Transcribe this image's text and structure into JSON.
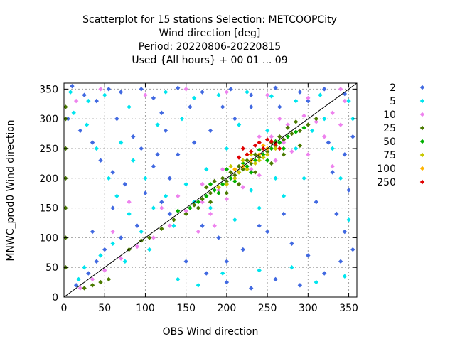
{
  "chart_data": {
    "type": "scatter",
    "title": [
      "Scatterplot for   15 stations Selection: METCOOPCity",
      "Wind direction [deg]",
      "Period: 20220806-20220815",
      "Used {All hours} + 00 01 ... 09"
    ],
    "xlabel": "OBS Wind direction",
    "ylabel": "MNWC_prod0 Wind direction",
    "xlim": [
      0,
      360
    ],
    "ylim": [
      0,
      360
    ],
    "x_ticks": [
      0,
      50,
      100,
      150,
      200,
      250,
      300,
      350
    ],
    "y_ticks": [
      0,
      50,
      100,
      150,
      200,
      250,
      300,
      350
    ],
    "grid": true,
    "diagonal_line": true,
    "legend_position": "right",
    "series": [
      {
        "name": "2",
        "color": "#4169e1",
        "marker": "diamond",
        "points": [
          [
            10,
            355
          ],
          [
            25,
            340
          ],
          [
            40,
            330
          ],
          [
            55,
            350
          ],
          [
            70,
            345
          ],
          [
            95,
            350
          ],
          [
            110,
            335
          ],
          [
            140,
            352
          ],
          [
            170,
            345
          ],
          [
            205,
            350
          ],
          [
            230,
            340
          ],
          [
            260,
            352
          ],
          [
            290,
            345
          ],
          [
            320,
            350
          ],
          [
            345,
            342
          ],
          [
            5,
            300
          ],
          [
            20,
            280
          ],
          [
            35,
            260
          ],
          [
            45,
            230
          ],
          [
            60,
            210
          ],
          [
            75,
            190
          ],
          [
            100,
            175
          ],
          [
            120,
            160
          ],
          [
            130,
            140
          ],
          [
            90,
            120
          ],
          [
            70,
            100
          ],
          [
            50,
            80
          ],
          [
            40,
            60
          ],
          [
            30,
            40
          ],
          [
            15,
            20
          ],
          [
            150,
            60
          ],
          [
            175,
            40
          ],
          [
            200,
            25
          ],
          [
            230,
            15
          ],
          [
            260,
            30
          ],
          [
            290,
            20
          ],
          [
            320,
            40
          ],
          [
            340,
            60
          ],
          [
            355,
            80
          ],
          [
            345,
            110
          ],
          [
            335,
            140
          ],
          [
            350,
            180
          ],
          [
            330,
            210
          ],
          [
            345,
            240
          ],
          [
            355,
            270
          ],
          [
            210,
            300
          ],
          [
            180,
            280
          ],
          [
            160,
            260
          ],
          [
            140,
            240
          ],
          [
            110,
            220
          ],
          [
            95,
            250
          ],
          [
            85,
            270
          ],
          [
            65,
            300
          ],
          [
            120,
            310
          ],
          [
            250,
            110
          ],
          [
            280,
            90
          ],
          [
            300,
            70
          ],
          [
            270,
            140
          ],
          [
            240,
            120
          ],
          [
            220,
            80
          ],
          [
            190,
            100
          ],
          [
            170,
            120
          ],
          [
            130,
            200
          ],
          [
            115,
            240
          ],
          [
            200,
            60
          ],
          [
            310,
            160
          ],
          [
            325,
            260
          ],
          [
            300,
            330
          ],
          [
            265,
            320
          ],
          [
            230,
            320
          ],
          [
            195,
            320
          ],
          [
            155,
            320
          ],
          [
            125,
            280
          ],
          [
            60,
            150
          ],
          [
            35,
            110
          ]
        ]
      },
      {
        "name": "5",
        "color": "#00e5ee",
        "marker": "diamond",
        "points": [
          [
            8,
            345
          ],
          [
            30,
            330
          ],
          [
            50,
            340
          ],
          [
            80,
            320
          ],
          [
            125,
            345
          ],
          [
            160,
            335
          ],
          [
            190,
            340
          ],
          [
            225,
            345
          ],
          [
            255,
            338
          ],
          [
            285,
            330
          ],
          [
            315,
            340
          ],
          [
            350,
            330
          ],
          [
            12,
            310
          ],
          [
            28,
            290
          ],
          [
            40,
            250
          ],
          [
            55,
            200
          ],
          [
            65,
            170
          ],
          [
            80,
            140
          ],
          [
            95,
            110
          ],
          [
            60,
            90
          ],
          [
            45,
            70
          ],
          [
            25,
            50
          ],
          [
            18,
            30
          ],
          [
            140,
            30
          ],
          [
            165,
            20
          ],
          [
            195,
            40
          ],
          [
            240,
            45
          ],
          [
            280,
            50
          ],
          [
            310,
            25
          ],
          [
            345,
            35
          ],
          [
            350,
            130
          ],
          [
            340,
            200
          ],
          [
            330,
            250
          ],
          [
            355,
            300
          ],
          [
            200,
            250
          ],
          [
            175,
            215
          ],
          [
            150,
            190
          ],
          [
            125,
            170
          ],
          [
            110,
            150
          ],
          [
            230,
            180
          ],
          [
            260,
            200
          ],
          [
            285,
            250
          ],
          [
            305,
            280
          ],
          [
            320,
            300
          ],
          [
            250,
            280
          ],
          [
            100,
            200
          ],
          [
            85,
            230
          ],
          [
            70,
            260
          ],
          [
            115,
            290
          ],
          [
            145,
            300
          ],
          [
            215,
            290
          ],
          [
            270,
            170
          ],
          [
            295,
            200
          ],
          [
            240,
            150
          ],
          [
            210,
            130
          ],
          [
            180,
            150
          ],
          [
            160,
            160
          ],
          [
            135,
            120
          ],
          [
            105,
            80
          ],
          [
            75,
            60
          ]
        ]
      },
      {
        "name": "10",
        "color": "#ee82ee",
        "marker": "diamond",
        "points": [
          [
            15,
            330
          ],
          [
            45,
            350
          ],
          [
            100,
            340
          ],
          [
            150,
            350
          ],
          [
            200,
            345
          ],
          [
            250,
            340
          ],
          [
            300,
            335
          ],
          [
            340,
            350
          ],
          [
            20,
            15
          ],
          [
            35,
            30
          ],
          [
            50,
            45
          ],
          [
            70,
            65
          ],
          [
            90,
            85
          ],
          [
            110,
            100
          ],
          [
            130,
            120
          ],
          [
            150,
            145
          ],
          [
            170,
            160
          ],
          [
            190,
            180
          ],
          [
            210,
            200
          ],
          [
            230,
            215
          ],
          [
            250,
            240
          ],
          [
            270,
            260
          ],
          [
            290,
            280
          ],
          [
            310,
            295
          ],
          [
            330,
            310
          ],
          [
            345,
            330
          ],
          [
            180,
            140
          ],
          [
            200,
            165
          ],
          [
            220,
            185
          ],
          [
            240,
            205
          ],
          [
            260,
            230
          ],
          [
            280,
            245
          ],
          [
            170,
            190
          ],
          [
            195,
            215
          ],
          [
            215,
            235
          ],
          [
            235,
            255
          ],
          [
            255,
            270
          ],
          [
            275,
            290
          ],
          [
            295,
            305
          ],
          [
            140,
            170
          ],
          [
            120,
            150
          ],
          [
            300,
            240
          ],
          [
            320,
            270
          ],
          [
            340,
            290
          ],
          [
            165,
            110
          ],
          [
            185,
            120
          ],
          [
            240,
            270
          ],
          [
            265,
            300
          ],
          [
            60,
            110
          ],
          [
            80,
            160
          ],
          [
            330,
            220
          ]
        ]
      },
      {
        "name": "25",
        "color": "#4a7a00",
        "marker": "diamond",
        "points": [
          [
            2,
            50
          ],
          [
            2,
            100
          ],
          [
            2,
            150
          ],
          [
            2,
            200
          ],
          [
            2,
            250
          ],
          [
            2,
            300
          ],
          [
            2,
            320
          ],
          [
            25,
            15
          ],
          [
            35,
            20
          ],
          [
            45,
            25
          ],
          [
            55,
            30
          ],
          [
            80,
            80
          ],
          [
            95,
            95
          ],
          [
            105,
            100
          ],
          [
            120,
            115
          ],
          [
            135,
            130
          ],
          [
            150,
            140
          ],
          [
            160,
            155
          ],
          [
            170,
            165
          ],
          [
            180,
            175
          ],
          [
            190,
            185
          ],
          [
            200,
            195
          ],
          [
            210,
            205
          ],
          [
            220,
            215
          ],
          [
            230,
            225
          ],
          [
            240,
            235
          ],
          [
            250,
            245
          ],
          [
            260,
            255
          ],
          [
            270,
            265
          ],
          [
            280,
            275
          ],
          [
            290,
            280
          ],
          [
            300,
            290
          ],
          [
            310,
            300
          ],
          [
            175,
            185
          ],
          [
            185,
            195
          ],
          [
            195,
            200
          ],
          [
            205,
            210
          ],
          [
            215,
            220
          ],
          [
            225,
            230
          ],
          [
            235,
            240
          ],
          [
            245,
            250
          ],
          [
            255,
            260
          ],
          [
            265,
            270
          ],
          [
            275,
            285
          ],
          [
            285,
            295
          ],
          [
            165,
            150
          ],
          [
            180,
            160
          ],
          [
            200,
            175
          ],
          [
            215,
            190
          ],
          [
            235,
            210
          ],
          [
            255,
            225
          ],
          [
            270,
            240
          ],
          [
            290,
            255
          ]
        ]
      },
      {
        "name": "50",
        "color": "#00b000",
        "marker": "diamond",
        "points": [
          [
            140,
            145
          ],
          [
            155,
            150
          ],
          [
            165,
            160
          ],
          [
            175,
            170
          ],
          [
            185,
            180
          ],
          [
            195,
            190
          ],
          [
            205,
            200
          ],
          [
            215,
            210
          ],
          [
            225,
            220
          ],
          [
            235,
            230
          ],
          [
            245,
            240
          ],
          [
            255,
            250
          ],
          [
            265,
            260
          ],
          [
            275,
            270
          ],
          [
            285,
            278
          ],
          [
            295,
            285
          ],
          [
            180,
            190
          ],
          [
            200,
            215
          ],
          [
            220,
            225
          ],
          [
            240,
            248
          ],
          [
            260,
            262
          ],
          [
            190,
            175
          ],
          [
            210,
            195
          ],
          [
            230,
            210
          ],
          [
            250,
            230
          ],
          [
            270,
            250
          ]
        ]
      },
      {
        "name": "75",
        "color": "#c8c800",
        "marker": "diamond",
        "points": [
          [
            190,
            185
          ],
          [
            200,
            190
          ],
          [
            210,
            200
          ],
          [
            215,
            210
          ],
          [
            225,
            215
          ],
          [
            235,
            225
          ],
          [
            245,
            235
          ],
          [
            205,
            220
          ],
          [
            220,
            230
          ],
          [
            230,
            240
          ],
          [
            240,
            230
          ],
          [
            250,
            240
          ],
          [
            260,
            250
          ]
        ]
      },
      {
        "name": "100",
        "color": "#ffb400",
        "marker": "diamond",
        "points": [
          [
            210,
            215
          ],
          [
            220,
            220
          ],
          [
            230,
            230
          ],
          [
            240,
            240
          ],
          [
            250,
            250
          ],
          [
            225,
            240
          ],
          [
            245,
            255
          ]
        ]
      },
      {
        "name": "250",
        "color": "#e00000",
        "marker": "diamond",
        "points": [
          [
            220,
            250
          ],
          [
            225,
            240
          ],
          [
            230,
            245
          ],
          [
            235,
            255
          ],
          [
            240,
            260
          ],
          [
            245,
            250
          ],
          [
            250,
            265
          ],
          [
            255,
            262
          ],
          [
            260,
            258
          ],
          [
            265,
            250
          ],
          [
            215,
            235
          ]
        ]
      }
    ]
  }
}
